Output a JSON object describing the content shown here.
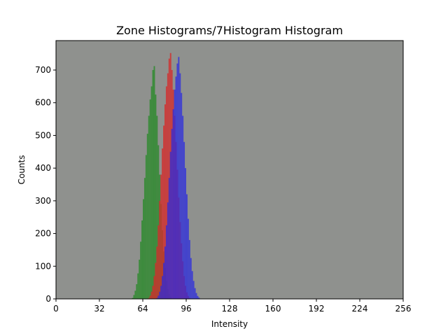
{
  "chart_data": {
    "type": "histogram",
    "title": "Zone Histograms/7Histogram Histogram",
    "xlabel": "Intensity",
    "ylabel": "Counts",
    "xlim": [
      0,
      256
    ],
    "ylim": [
      0,
      790
    ],
    "x_ticks": [
      0,
      32,
      64,
      96,
      128,
      160,
      192,
      224,
      256
    ],
    "y_ticks": [
      0,
      100,
      200,
      300,
      400,
      500,
      600,
      700
    ],
    "plot_background": "#8f918e",
    "grid": false,
    "legend": "none",
    "series": [
      {
        "color": "#2f8a2f",
        "alpha": 0.85,
        "bins": [
          [
            56,
            3
          ],
          [
            57,
            12
          ],
          [
            58,
            25
          ],
          [
            59,
            45
          ],
          [
            60,
            78
          ],
          [
            61,
            120
          ],
          [
            62,
            175
          ],
          [
            63,
            240
          ],
          [
            64,
            305
          ],
          [
            65,
            370
          ],
          [
            66,
            440
          ],
          [
            67,
            505
          ],
          [
            68,
            560
          ],
          [
            69,
            610
          ],
          [
            70,
            650
          ],
          [
            71,
            700
          ],
          [
            72,
            712
          ],
          [
            73,
            625
          ],
          [
            74,
            560
          ],
          [
            75,
            470
          ],
          [
            76,
            380
          ],
          [
            77,
            290
          ],
          [
            78,
            210
          ],
          [
            79,
            145
          ],
          [
            80,
            95
          ],
          [
            81,
            55
          ],
          [
            82,
            30
          ],
          [
            83,
            15
          ],
          [
            84,
            6
          ]
        ]
      },
      {
        "color": "#d42a2a",
        "alpha": 0.8,
        "bins": [
          [
            68,
            3
          ],
          [
            69,
            10
          ],
          [
            70,
            22
          ],
          [
            71,
            40
          ],
          [
            72,
            70
          ],
          [
            73,
            110
          ],
          [
            74,
            160
          ],
          [
            75,
            225
          ],
          [
            76,
            300
          ],
          [
            77,
            380
          ],
          [
            78,
            460
          ],
          [
            79,
            530
          ],
          [
            80,
            595
          ],
          [
            81,
            650
          ],
          [
            82,
            690
          ],
          [
            83,
            735
          ],
          [
            84,
            752
          ],
          [
            85,
            700
          ],
          [
            86,
            640
          ],
          [
            87,
            560
          ],
          [
            88,
            480
          ],
          [
            89,
            395
          ],
          [
            90,
            310
          ],
          [
            91,
            235
          ],
          [
            92,
            170
          ],
          [
            93,
            115
          ],
          [
            94,
            70
          ],
          [
            95,
            40
          ],
          [
            96,
            20
          ],
          [
            97,
            9
          ],
          [
            98,
            3
          ]
        ]
      },
      {
        "color": "#2a2ae0",
        "alpha": 0.75,
        "bins": [
          [
            74,
            3
          ],
          [
            75,
            10
          ],
          [
            76,
            22
          ],
          [
            77,
            40
          ],
          [
            78,
            70
          ],
          [
            79,
            110
          ],
          [
            80,
            160
          ],
          [
            81,
            225
          ],
          [
            82,
            295
          ],
          [
            83,
            370
          ],
          [
            84,
            450
          ],
          [
            85,
            520
          ],
          [
            86,
            580
          ],
          [
            87,
            640
          ],
          [
            88,
            680
          ],
          [
            89,
            720
          ],
          [
            90,
            740
          ],
          [
            91,
            690
          ],
          [
            92,
            630
          ],
          [
            93,
            560
          ],
          [
            94,
            480
          ],
          [
            95,
            400
          ],
          [
            96,
            320
          ],
          [
            97,
            245
          ],
          [
            98,
            180
          ],
          [
            99,
            125
          ],
          [
            100,
            85
          ],
          [
            101,
            55
          ],
          [
            102,
            33
          ],
          [
            103,
            18
          ],
          [
            104,
            9
          ],
          [
            105,
            4
          ]
        ]
      }
    ]
  }
}
